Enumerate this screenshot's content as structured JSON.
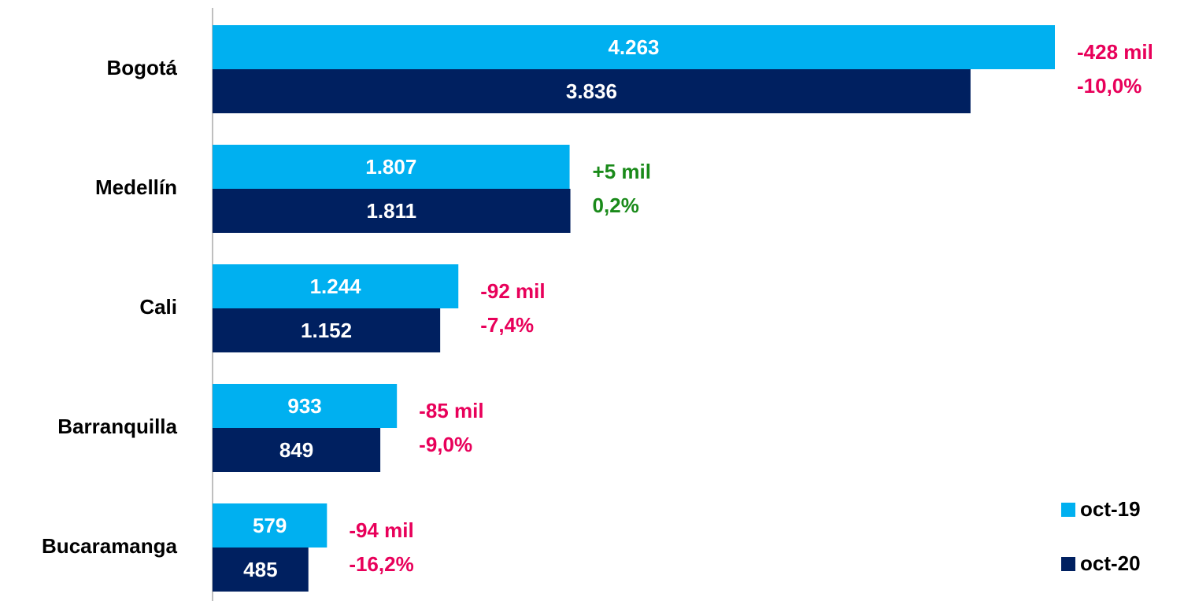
{
  "chart_data": {
    "type": "bar",
    "orientation": "horizontal",
    "categories": [
      "Bogotá",
      "Medellín",
      "Cali",
      "Barranquilla",
      "Bucaramanga"
    ],
    "series": [
      {
        "name": "oct-19",
        "color": "#00b0f0",
        "values": [
          4263,
          1807,
          1244,
          933,
          579
        ],
        "value_labels": [
          "4.263",
          "1.807",
          "1.244",
          "933",
          "579"
        ]
      },
      {
        "name": "oct-20",
        "color": "#002060",
        "values": [
          3836,
          1811,
          1152,
          849,
          485
        ],
        "value_labels": [
          "3.836",
          "1.811",
          "1.152",
          "849",
          "485"
        ]
      }
    ],
    "annotations": [
      {
        "lines": [
          "-428 mil",
          "-10,0%"
        ],
        "color": "#e8005a"
      },
      {
        "lines": [
          "+5 mil",
          "0,2%"
        ],
        "color": "#1a8a1a"
      },
      {
        "lines": [
          "-92 mil",
          "-7,4%"
        ],
        "color": "#e8005a"
      },
      {
        "lines": [
          "-85 mil",
          "-9,0%"
        ],
        "color": "#e8005a"
      },
      {
        "lines": [
          "-94 mil",
          "-16,2%"
        ],
        "color": "#e8005a"
      }
    ],
    "legend": "bottom-right"
  }
}
